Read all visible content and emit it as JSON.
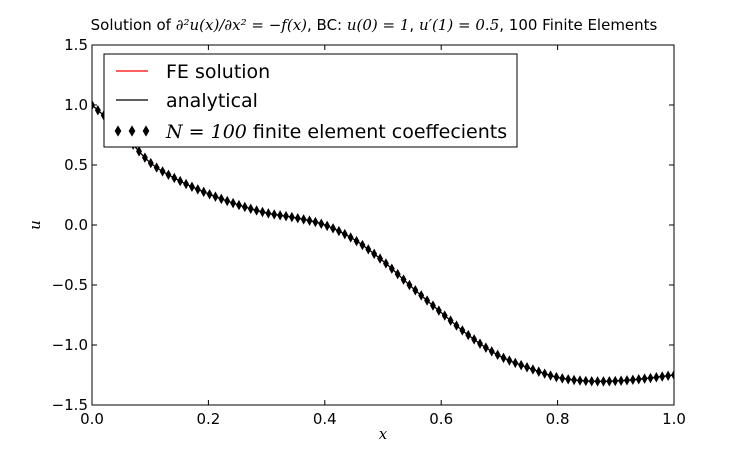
{
  "chart_data": {
    "type": "line",
    "title": {
      "prefix": "Solution of ",
      "equation": "∂²u(x)/∂x² = −f(x)",
      "bc_label": ", BC: ",
      "bc_left": "u(0) = 1",
      "separator": ", ",
      "bc_right": "u′(1) = 0.5",
      "suffix": ", 100 Finite Elements"
    },
    "xlabel": "x",
    "ylabel": "u",
    "xlim": [
      0.0,
      1.0
    ],
    "ylim": [
      -1.5,
      1.5
    ],
    "xticks": [
      0.0,
      0.2,
      0.4,
      0.6,
      0.8,
      1.0
    ],
    "xtick_labels": [
      "0.0",
      "0.2",
      "0.4",
      "0.6",
      "0.8",
      "1.0"
    ],
    "yticks": [
      -1.5,
      -1.0,
      -0.5,
      0.0,
      0.5,
      1.0,
      1.5
    ],
    "ytick_labels": [
      "−1.5",
      "−1.0",
      "−0.5",
      "0.0",
      "0.5",
      "1.0",
      "1.5"
    ],
    "grid": false,
    "legend_position": "top-left",
    "legend": [
      {
        "label": "FE solution",
        "color": "#ff0000",
        "style": "line"
      },
      {
        "label": "analytical",
        "color": "#000000",
        "style": "line"
      },
      {
        "label_math": "N = 100",
        "label_text": " finite element coeffecients",
        "color": "#000000",
        "style": "diamond"
      }
    ],
    "curve": {
      "x": [
        0.0,
        0.05,
        0.1,
        0.15,
        0.2,
        0.25,
        0.3,
        0.35,
        0.4,
        0.45,
        0.5,
        0.55,
        0.6,
        0.65,
        0.7,
        0.75,
        0.8,
        0.85,
        0.9,
        0.95,
        1.0
      ],
      "y": [
        1.0,
        0.78,
        0.52,
        0.37,
        0.26,
        0.17,
        0.1,
        0.06,
        0.0,
        -0.12,
        -0.3,
        -0.52,
        -0.73,
        -0.93,
        -1.09,
        -1.19,
        -1.27,
        -1.3,
        -1.3,
        -1.28,
        -1.25
      ]
    },
    "markers": {
      "count": 100,
      "x_start": 0.0,
      "x_end": 1.0
    }
  }
}
